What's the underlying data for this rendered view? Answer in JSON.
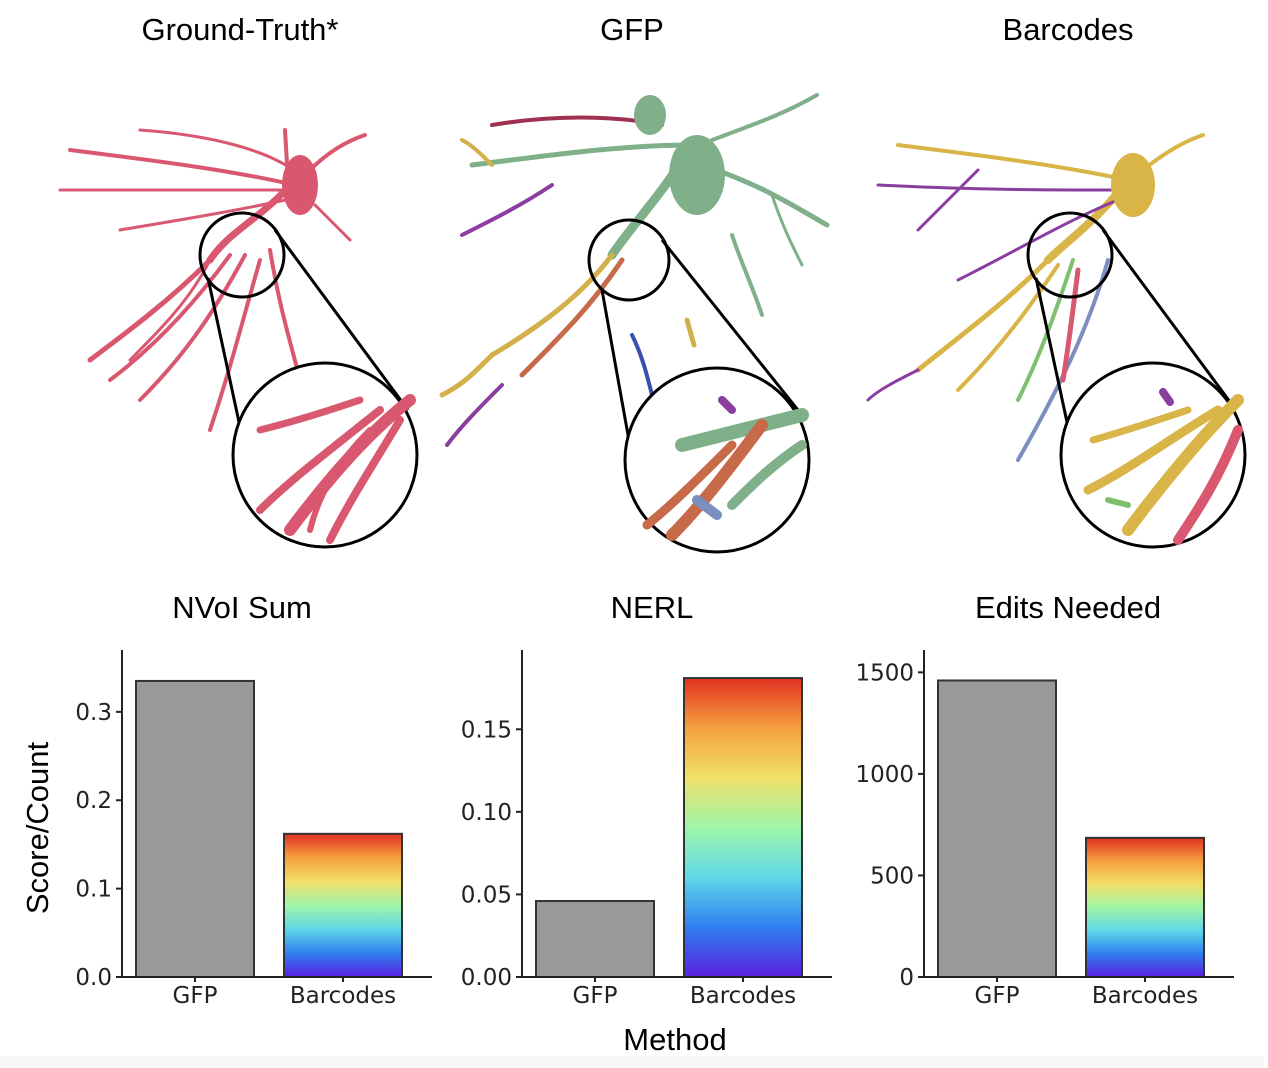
{
  "panels": [
    {
      "title": "Ground-Truth*",
      "palette": [
        "#d9586f"
      ]
    },
    {
      "title": "GFP",
      "palette": [
        "#7fb08a",
        "#c76a4a",
        "#d4b04a",
        "#8a3ea0",
        "#3a4fb0",
        "#a03050",
        "#7a8fc0"
      ]
    },
    {
      "title": "Barcodes",
      "palette": [
        "#d9b446",
        "#8a3ea0",
        "#7a8fc0",
        "#7fc070",
        "#d9586f"
      ]
    }
  ],
  "shared": {
    "ylabel": "Score/Count",
    "xlabel": "Method",
    "gfp_color": "#999999",
    "gradient": [
      "#5a1fe0",
      "#2f7ff0",
      "#5fd8e8",
      "#9ff5a8",
      "#f0e06a",
      "#f6a040",
      "#e03020"
    ]
  },
  "chart_data": [
    {
      "type": "bar",
      "title": "NVoI Sum",
      "categories": [
        "GFP",
        "Barcodes"
      ],
      "values": [
        0.335,
        0.162
      ],
      "ylim": [
        0,
        0.37
      ],
      "yticks": [
        0.0,
        0.1,
        0.2,
        0.3
      ],
      "ytick_labels": [
        "0.0",
        "0.1",
        "0.2",
        "0.3"
      ],
      "xlabel": "",
      "ylabel": "Score/Count"
    },
    {
      "type": "bar",
      "title": "NERL",
      "categories": [
        "GFP",
        "Barcodes"
      ],
      "values": [
        0.046,
        0.181
      ],
      "ylim": [
        0,
        0.198
      ],
      "yticks": [
        0.0,
        0.05,
        0.1,
        0.15
      ],
      "ytick_labels": [
        "0.00",
        "0.05",
        "0.10",
        "0.15"
      ],
      "xlabel": "Method",
      "ylabel": ""
    },
    {
      "type": "bar",
      "title": "Edits Needed",
      "categories": [
        "GFP",
        "Barcodes"
      ],
      "values": [
        1460,
        685
      ],
      "ylim": [
        0,
        1610
      ],
      "yticks": [
        0,
        500,
        1000,
        1500
      ],
      "ytick_labels": [
        "0",
        "500",
        "1000",
        "1500"
      ],
      "xlabel": "",
      "ylabel": ""
    }
  ]
}
